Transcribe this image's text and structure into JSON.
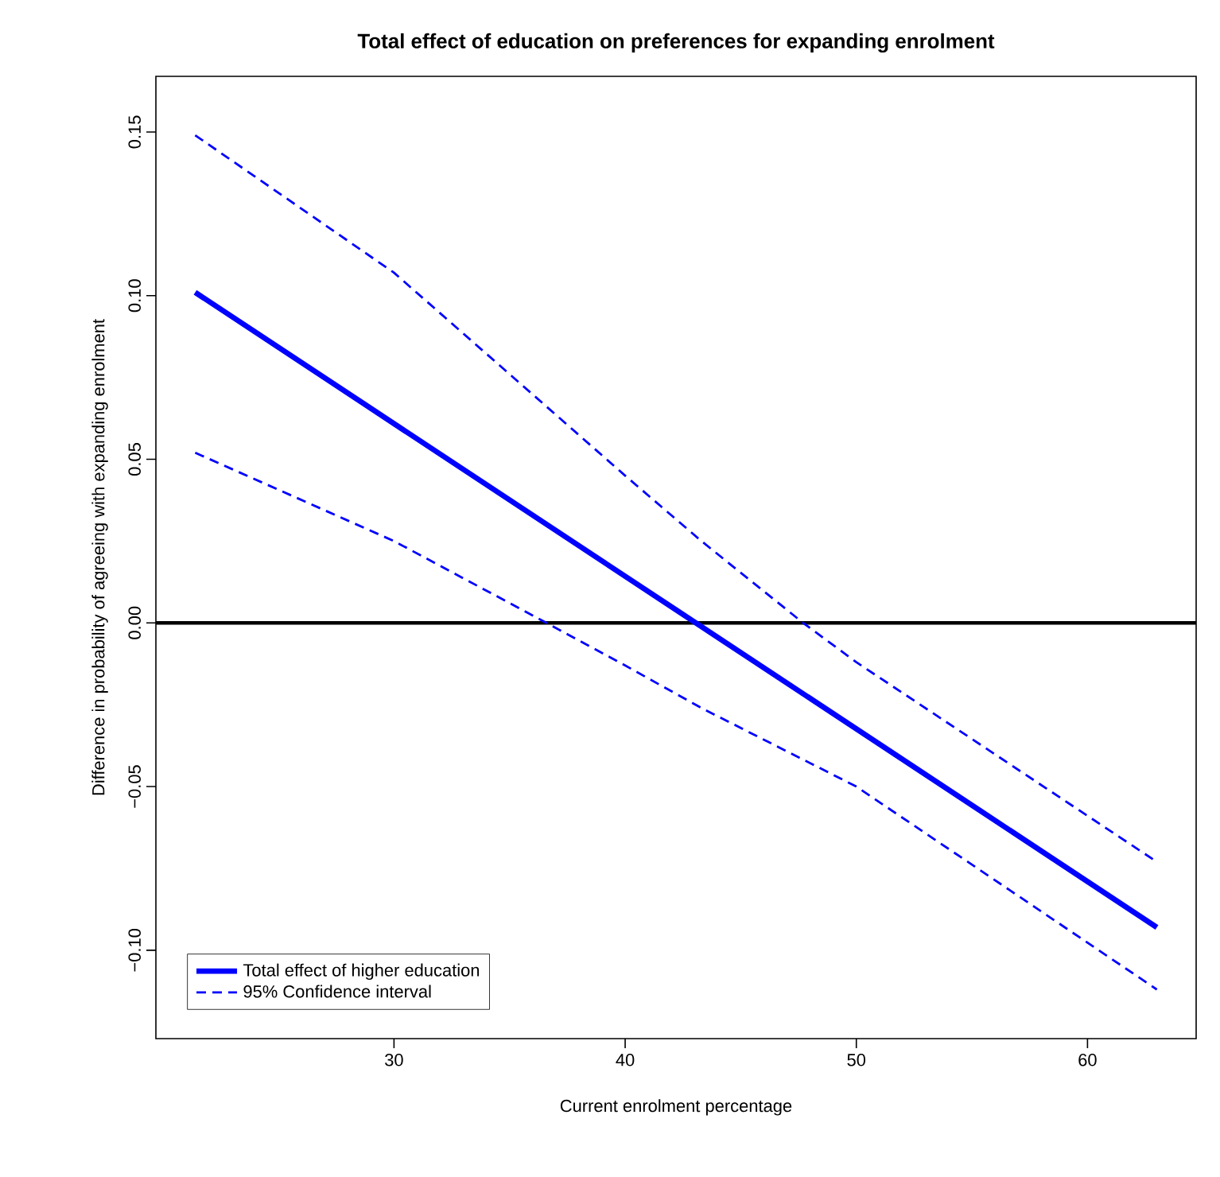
{
  "chart_data": {
    "type": "line",
    "title": "Total effect of education on preferences for expanding enrolment",
    "xlabel": "Current enrolment percentage",
    "ylabel": "Difference in probability of agreeing with expanding enrolment",
    "series": [
      {
        "name": "Total effect of higher education",
        "color": "#0000ff",
        "line_style": "solid",
        "x": [
          21.4,
          63
        ],
        "values": [
          0.101,
          -0.093
        ]
      },
      {
        "name": "95% Confidence interval",
        "color": "#0000ff",
        "line_style": "dashed",
        "x": [
          21.4,
          30,
          40,
          43.3,
          47.7,
          50,
          63
        ],
        "values": [
          0.149,
          0.107,
          0.045,
          0.025,
          0,
          -0.012,
          -0.073
        ]
      },
      {
        "color": "#0000ff",
        "line_style": "dashed",
        "x": [
          21.4,
          30,
          36.6,
          40,
          43.3,
          50,
          63
        ],
        "values": [
          0.052,
          0.025,
          0,
          -0.013,
          -0.026,
          -0.05,
          -0.112
        ]
      }
    ],
    "xlim": [
      19.7,
      64.7
    ],
    "ylim": [
      -0.127,
      0.167
    ],
    "xticks": [
      30,
      40,
      50,
      60
    ],
    "yticks": [
      {
        "value": -0.1,
        "label": "−0.10"
      },
      {
        "value": -0.05,
        "label": "−0.05"
      },
      {
        "value": 0,
        "label": "0.00"
      },
      {
        "value": 0.05,
        "label": "0.05"
      },
      {
        "value": 0.1,
        "label": "0.10"
      },
      {
        "value": 0.15,
        "label": "0.15"
      }
    ],
    "ref_lines": [
      {
        "axis": "y",
        "value": 0,
        "color": "#000000",
        "line_style": "solid"
      }
    ],
    "grid": false,
    "legend": "bottom left",
    "marker": "none"
  }
}
